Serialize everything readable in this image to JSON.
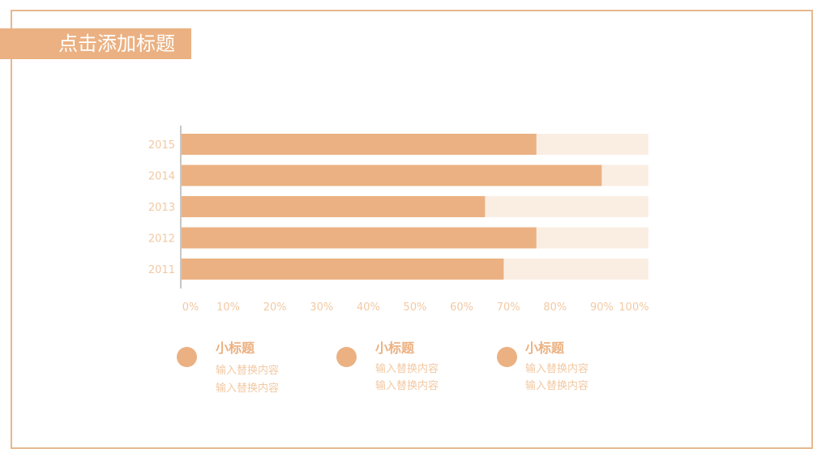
{
  "title": "点击添加标题",
  "colors": {
    "accent": "#ebb182",
    "bar_bg": "#faeee3",
    "axis": "#c7c7c7",
    "tick_text": "#f2c9a3",
    "frame": "#e6b88e"
  },
  "chart_data": {
    "type": "bar",
    "orientation": "horizontal",
    "categories": [
      "2015",
      "2014",
      "2013",
      "2012",
      "2011"
    ],
    "values": [
      76,
      90,
      65,
      76,
      69
    ],
    "xlim": [
      0,
      100
    ],
    "x_ticks": [
      "0%",
      "10%",
      "20%",
      "30%",
      "40%",
      "50%",
      "60%",
      "70%",
      "80%",
      "90%",
      "100%"
    ],
    "grid": false,
    "title": "",
    "xlabel": "",
    "ylabel": ""
  },
  "legend": [
    {
      "title": "小标题",
      "lines": [
        "输入替换内容",
        "输入替换内容"
      ]
    },
    {
      "title": "小标题",
      "lines": [
        "输入替换内容",
        "输入替换内容"
      ]
    },
    {
      "title": "小标题",
      "lines": [
        "输入替换内容",
        "输入替换内容"
      ]
    }
  ]
}
